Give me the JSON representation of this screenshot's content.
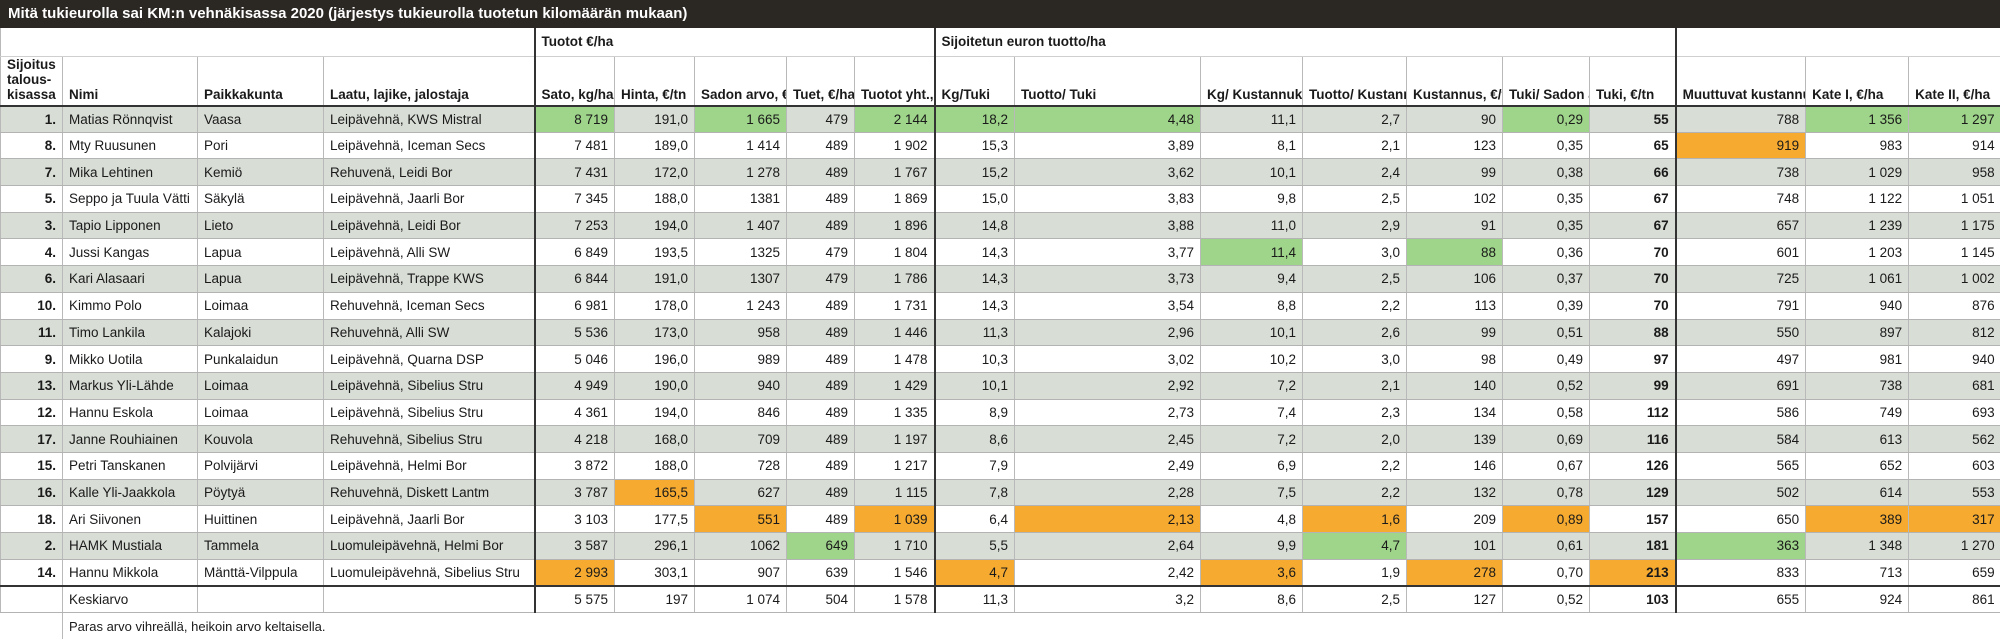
{
  "title": "Mitä tukieurolla sai KM:n vehnäkisassa 2020 (järjestys tukieurolla tuotetun kilomäärän mukaan)",
  "groups": {
    "tuotot": "Tuotot €/ha",
    "sijoitetun": "Sijoitetun euron tuotto/ha"
  },
  "headers": [
    "Sijoitus talous-kisassa",
    "Nimi",
    "Paikkakunta",
    "Laatu, lajike, jalostaja",
    "Sato, kg/ha",
    "Hinta, €/tn",
    "Sadon arvo, €/ha",
    "Tuet, €/ha",
    "Tuotot yht., €/ha",
    "Kg/Tuki",
    "Tuotto/ Tuki",
    "Kg/ Kustannukset",
    "Tuotto/ Kustannukset",
    "Kustannus, €/tn",
    "Tuki/ Sadon arvo",
    "Tuki, €/tn",
    "Muuttuvat kustannukset, yht.",
    "Kate I, €/ha",
    "Kate II, €/ha"
  ],
  "rows": [
    [
      "1.",
      "Matias Rönnqvist",
      "Vaasa",
      "Leipävehnä, KWS Mistral",
      "8 719",
      "191,0",
      "1 665",
      "479",
      "2 144",
      "18,2",
      "4,48",
      "11,1",
      "2,7",
      "90",
      "0,29",
      "55",
      "788",
      "1 356",
      "1 297"
    ],
    [
      "8.",
      "Mty Ruusunen",
      "Pori",
      "Leipävehnä, Iceman Secs",
      "7 481",
      "189,0",
      "1 414",
      "489",
      "1 902",
      "15,3",
      "3,89",
      "8,1",
      "2,1",
      "123",
      "0,35",
      "65",
      "919",
      "983",
      "914"
    ],
    [
      "7.",
      "Mika Lehtinen",
      "Kemiö",
      "Rehuvenä, Leidi Bor",
      "7 431",
      "172,0",
      "1 278",
      "489",
      "1 767",
      "15,2",
      "3,62",
      "10,1",
      "2,4",
      "99",
      "0,38",
      "66",
      "738",
      "1 029",
      "958"
    ],
    [
      "5.",
      "Seppo ja Tuula Vätti",
      "Säkylä",
      "Leipävehnä, Jaarli Bor",
      "7 345",
      "188,0",
      "1381",
      "489",
      "1 869",
      "15,0",
      "3,83",
      "9,8",
      "2,5",
      "102",
      "0,35",
      "67",
      "748",
      "1 122",
      "1 051"
    ],
    [
      "3.",
      "Tapio Lipponen",
      "Lieto",
      "Leipävehnä, Leidi Bor",
      "7 253",
      "194,0",
      "1 407",
      "489",
      "1 896",
      "14,8",
      "3,88",
      "11,0",
      "2,9",
      "91",
      "0,35",
      "67",
      "657",
      "1 239",
      "1 175"
    ],
    [
      "4.",
      "Jussi Kangas",
      "Lapua",
      "Leipävehnä, Alli SW",
      "6 849",
      "193,5",
      "1325",
      "479",
      "1 804",
      "14,3",
      "3,77",
      "11,4",
      "3,0",
      "88",
      "0,36",
      "70",
      "601",
      "1 203",
      "1 145"
    ],
    [
      "6.",
      "Kari Alasaari",
      "Lapua",
      "Leipävehnä, Trappe KWS",
      "6 844",
      "191,0",
      "1307",
      "479",
      "1 786",
      "14,3",
      "3,73",
      "9,4",
      "2,5",
      "106",
      "0,37",
      "70",
      "725",
      "1 061",
      "1 002"
    ],
    [
      "10.",
      "Kimmo Polo",
      "Loimaa",
      "Rehuvehnä, Iceman Secs",
      "6 981",
      "178,0",
      "1 243",
      "489",
      "1 731",
      "14,3",
      "3,54",
      "8,8",
      "2,2",
      "113",
      "0,39",
      "70",
      "791",
      "940",
      "876"
    ],
    [
      "11.",
      "Timo Lankila",
      "Kalajoki",
      "Rehuvehnä, Alli SW",
      "5 536",
      "173,0",
      "958",
      "489",
      "1 446",
      "11,3",
      "2,96",
      "10,1",
      "2,6",
      "99",
      "0,51",
      "88",
      "550",
      "897",
      "812"
    ],
    [
      "9.",
      "Mikko Uotila",
      "Punkalaidun",
      "Leipävehnä, Quarna DSP",
      "5 046",
      "196,0",
      "989",
      "489",
      "1 478",
      "10,3",
      "3,02",
      "10,2",
      "3,0",
      "98",
      "0,49",
      "97",
      "497",
      "981",
      "940"
    ],
    [
      "13.",
      "Markus Yli-Lähde",
      "Loimaa",
      "Leipävehnä, Sibelius Stru",
      "4 949",
      "190,0",
      "940",
      "489",
      "1 429",
      "10,1",
      "2,92",
      "7,2",
      "2,1",
      "140",
      "0,52",
      "99",
      "691",
      "738",
      "681"
    ],
    [
      "12.",
      "Hannu Eskola",
      "Loimaa",
      "Leipävehnä, Sibelius Stru",
      "4 361",
      "194,0",
      "846",
      "489",
      "1 335",
      "8,9",
      "2,73",
      "7,4",
      "2,3",
      "134",
      "0,58",
      "112",
      "586",
      "749",
      "693"
    ],
    [
      "17.",
      "Janne Rouhiainen",
      "Kouvola",
      "Rehuvehnä, Sibelius Stru",
      "4 218",
      "168,0",
      "709",
      "489",
      "1 197",
      "8,6",
      "2,45",
      "7,2",
      "2,0",
      "139",
      "0,69",
      "116",
      "584",
      "613",
      "562"
    ],
    [
      "15.",
      "Petri Tanskanen",
      "Polvijärvi",
      "Leipävehnä, Helmi Bor",
      "3 872",
      "188,0",
      "728",
      "489",
      "1 217",
      "7,9",
      "2,49",
      "6,9",
      "2,2",
      "146",
      "0,67",
      "126",
      "565",
      "652",
      "603"
    ],
    [
      "16.",
      "Kalle Yli-Jaakkola",
      "Pöytyä",
      "Rehuvehnä, Diskett Lantm",
      "3 787",
      "165,5",
      "627",
      "489",
      "1 115",
      "7,8",
      "2,28",
      "7,5",
      "2,2",
      "132",
      "0,78",
      "129",
      "502",
      "614",
      "553"
    ],
    [
      "18.",
      "Ari Siivonen",
      "Huittinen",
      "Leipävehnä, Jaarli Bor",
      "3 103",
      "177,5",
      "551",
      "489",
      "1 039",
      "6,4",
      "2,13",
      "4,8",
      "1,6",
      "209",
      "0,89",
      "157",
      "650",
      "389",
      "317"
    ],
    [
      "2.",
      "HAMK Mustiala",
      "Tammela",
      "Luomuleipävehnä, Helmi Bor",
      "3 587",
      "296,1",
      "1062",
      "649",
      "1 710",
      "5,5",
      "2,64",
      "9,9",
      "4,7",
      "101",
      "0,61",
      "181",
      "363",
      "1 348",
      "1 270"
    ],
    [
      "14.",
      "Hannu Mikkola",
      "Mänttä-Vilppula",
      "Luomuleipävehnä, Sibelius Stru",
      "2 993",
      "303,1",
      "907",
      "639",
      "1 546",
      "4,7",
      "2,42",
      "3,6",
      "1,9",
      "278",
      "0,70",
      "213",
      "833",
      "713",
      "659"
    ]
  ],
  "average": {
    "label": "Keskiarvo",
    "values": [
      "5 575",
      "197",
      "1 074",
      "504",
      "1 578",
      "11,3",
      "3,2",
      "8,6",
      "2,5",
      "127",
      "0,52",
      "103",
      "655",
      "924",
      "861"
    ]
  },
  "note": "Paras arvo vihreällä, heikoin arvo keltaisella.",
  "colors": {
    "best": "#9fd58a",
    "worst": "#f6aa2f",
    "shade": "#d8ddd6",
    "title_bg": "#2b2723"
  },
  "highlights": {
    "best": [
      [
        0,
        4
      ],
      [
        0,
        6
      ],
      [
        0,
        8
      ],
      [
        0,
        9
      ],
      [
        0,
        10
      ],
      [
        0,
        14
      ],
      [
        0,
        17
      ],
      [
        0,
        18
      ],
      [
        5,
        11
      ],
      [
        5,
        13
      ],
      [
        16,
        7
      ],
      [
        16,
        12
      ],
      [
        16,
        16
      ]
    ],
    "worst": [
      [
        1,
        16
      ],
      [
        14,
        5
      ],
      [
        15,
        6
      ],
      [
        15,
        8
      ],
      [
        15,
        10
      ],
      [
        15,
        12
      ],
      [
        15,
        14
      ],
      [
        15,
        17
      ],
      [
        15,
        18
      ],
      [
        17,
        4
      ],
      [
        17,
        9
      ],
      [
        17,
        11
      ],
      [
        17,
        13
      ],
      [
        17,
        15
      ]
    ]
  }
}
